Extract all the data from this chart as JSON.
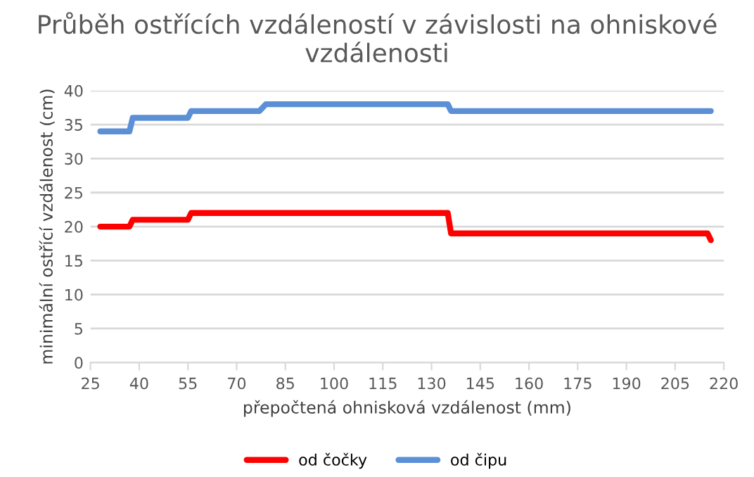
{
  "chart_data": {
    "type": "line",
    "title": "Průběh ostřících vzdáleností v závislosti na ohniskové vzdálenosti",
    "xlabel": "přepočtená ohnisková vzdálenost (mm)",
    "ylabel": "minimální ostřící vzdálenost (cm)",
    "series": [
      {
        "name": "od čočky",
        "color": "#ff0000",
        "x": [
          28,
          37,
          38,
          55,
          56,
          135,
          136,
          215,
          216
        ],
        "values": [
          20,
          20,
          21,
          21,
          22,
          22,
          19,
          19,
          18
        ]
      },
      {
        "name": "od čipu",
        "color": "#5b8fd6",
        "x": [
          28,
          37,
          38,
          55,
          56,
          77,
          79,
          135,
          136,
          216
        ],
        "values": [
          34,
          34,
          36,
          36,
          37,
          37,
          38,
          38,
          37,
          37
        ]
      }
    ],
    "xlim": [
      25,
      220
    ],
    "xticks": [
      25,
      40,
      55,
      70,
      85,
      100,
      115,
      130,
      145,
      160,
      175,
      190,
      205,
      220
    ],
    "ylim": [
      0,
      40
    ],
    "yticks": [
      0,
      5,
      10,
      15,
      20,
      25,
      30,
      35,
      40
    ],
    "grid": "y",
    "legend": "bottom",
    "marker": "none",
    "line_style": "solid"
  }
}
